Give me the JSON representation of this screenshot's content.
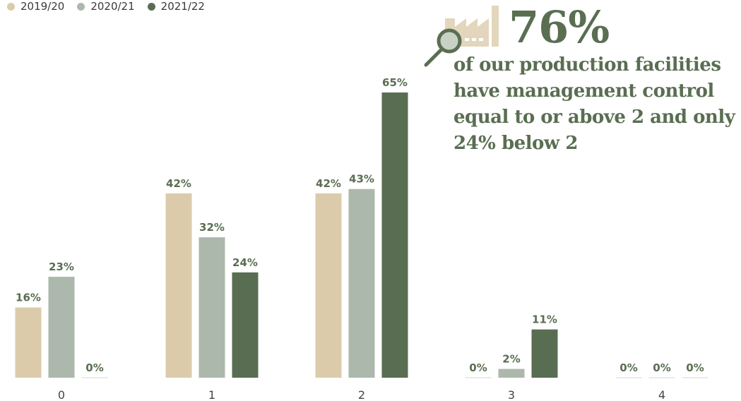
{
  "colors": {
    "series_2019": "#dccbaa",
    "series_2020": "#adb8ac",
    "series_2021": "#596d52",
    "label_text": "#5a6e52",
    "axis_line": "#e4e4e4"
  },
  "legend": [
    {
      "label": "2019/20",
      "color": "#dccbaa"
    },
    {
      "label": "2020/21",
      "color": "#adb8ac"
    },
    {
      "label": "2021/22",
      "color": "#596d52"
    }
  ],
  "callout": {
    "big_number": "76%",
    "text": "of our production facilities have management control equal to or above 2 and only 24% below 2",
    "icon": "factory-magnifier-icon"
  },
  "chart_data": {
    "type": "bar",
    "categories": [
      "0",
      "1",
      "2",
      "3",
      "4"
    ],
    "series": [
      {
        "name": "2019/20",
        "values": [
          16,
          42,
          42,
          0,
          0
        ],
        "labels": [
          "16%",
          "42%",
          "42%",
          "0%",
          "0%"
        ]
      },
      {
        "name": "2020/21",
        "values": [
          23,
          32,
          43,
          2,
          0
        ],
        "labels": [
          "23%",
          "32%",
          "43%",
          "2%",
          "0%"
        ]
      },
      {
        "name": "2021/22",
        "values": [
          0,
          24,
          65,
          11,
          0
        ],
        "labels": [
          "0%",
          "24%",
          "65%",
          "11%",
          "0%"
        ]
      }
    ],
    "ylim": [
      0,
      65
    ],
    "grid": false,
    "legend_position": "top-left"
  }
}
